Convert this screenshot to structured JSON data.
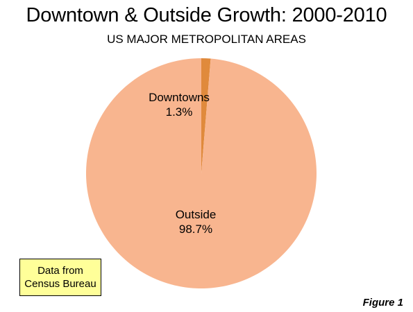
{
  "header": {
    "title": "Downtown & Outside Growth: 2000-2010",
    "subtitle": "US MAJOR METROPOLITAN AREAS"
  },
  "source_note": {
    "line1": "Data from",
    "line2": "Census Bureau"
  },
  "figure_label": "Figure 1",
  "chart_data": {
    "type": "pie",
    "title": "Downtown & Outside Growth: 2000-2010",
    "subtitle": "US MAJOR METROPOLITAN AREAS",
    "slices": [
      {
        "name": "Downtowns",
        "value": 1.3,
        "label": "1.3%",
        "color": "#e08a3c"
      },
      {
        "name": "Outside",
        "value": 98.7,
        "label": "98.7%",
        "color": "#f8b58f"
      }
    ],
    "start": "12 o'clock",
    "direction": "clockwise",
    "legend": "none"
  }
}
